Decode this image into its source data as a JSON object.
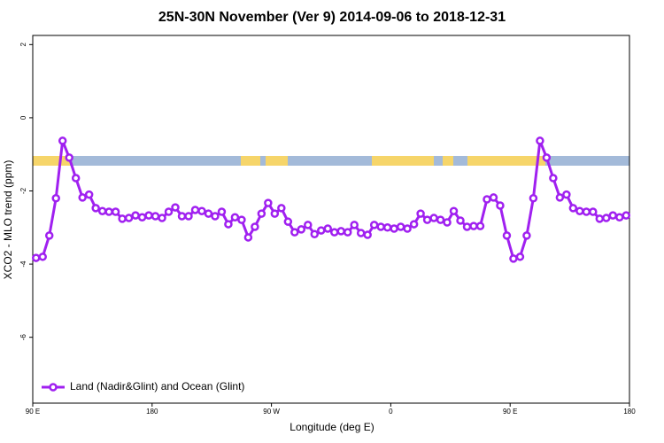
{
  "chart_data": {
    "type": "line",
    "title": "25N-30N November (Ver 9)   2014-09-06 to 2018-12-31",
    "x_label": "Longitude (deg E)",
    "y_label": "XCO2 - MLO trend (ppm)",
    "xlim": [
      90,
      540
    ],
    "xticks": [
      {
        "value": 90,
        "label": "90 E"
      },
      180,
      {
        "value": 270,
        "label": "90 W"
      },
      {
        "value": 360,
        "label": "0"
      },
      {
        "value": 450,
        "label": "90 E"
      },
      {
        "value": 540,
        "label": "180"
      }
    ],
    "ylim": [
      -7.8,
      2.25
    ],
    "yticks": [
      -6,
      -4,
      -2,
      0,
      2
    ],
    "legend_position": "bottom-left",
    "x": [
      92.5,
      97.5,
      102.5,
      107.5,
      112.5,
      117.5,
      122.5,
      127.5,
      132.5,
      137.5,
      142.5,
      147.5,
      152.5,
      157.5,
      162.5,
      167.5,
      172.5,
      177.5,
      182.5,
      187.5,
      192.5,
      197.5,
      202.5,
      207.5,
      212.5,
      217.5,
      222.5,
      227.5,
      232.5,
      237.5,
      242.5,
      247.5,
      252.5,
      257.5,
      262.5,
      267.5,
      272.5,
      277.5,
      282.5,
      287.5,
      292.5,
      297.5,
      302.5,
      307.5,
      312.5,
      317.5,
      322.5,
      327.5,
      332.5,
      337.5,
      342.5,
      347.5,
      352.5,
      357.5,
      362.5,
      367.5,
      372.5,
      377.5,
      382.5,
      387.5,
      392.5,
      397.5,
      402.5,
      407.5,
      412.5,
      417.5,
      422.5,
      427.5,
      432.5,
      437.5,
      442.5,
      447.5,
      452.5,
      457.5,
      462.5,
      467.5,
      472.5,
      477.5,
      482.5,
      487.5,
      492.5,
      497.5,
      502.5,
      507.5,
      512.5,
      517.5,
      522.5,
      527.5,
      532.5,
      537.5
    ],
    "series": [
      {
        "name": "Land (Nadir&Glint) and Ocean (Glint)",
        "color": "#a020f0",
        "values": [
          -3.83,
          -3.8,
          -3.22,
          -2.2,
          -0.63,
          -1.09,
          -1.65,
          -2.18,
          -2.1,
          -2.47,
          -2.55,
          -2.57,
          -2.57,
          -2.76,
          -2.74,
          -2.67,
          -2.72,
          -2.67,
          -2.69,
          -2.74,
          -2.57,
          -2.45,
          -2.69,
          -2.69,
          -2.52,
          -2.55,
          -2.62,
          -2.69,
          -2.57,
          -2.91,
          -2.72,
          -2.79,
          -3.27,
          -2.98,
          -2.62,
          -2.33,
          -2.62,
          -2.47,
          -2.84,
          -3.13,
          -3.05,
          -2.93,
          -3.18,
          -3.08,
          -3.03,
          -3.13,
          -3.1,
          -3.13,
          -2.93,
          -3.15,
          -3.2,
          -2.93,
          -2.98,
          -3.0,
          -3.03,
          -2.98,
          -3.03,
          -2.91,
          -2.62,
          -2.79,
          -2.74,
          -2.79,
          -2.86,
          -2.55,
          -2.81,
          -2.98,
          -2.96,
          -2.96,
          -2.23,
          -2.18,
          -2.4,
          -3.22,
          -3.85,
          -3.8,
          -3.22,
          -2.2,
          -0.63,
          -1.09,
          -1.65,
          -2.18,
          -2.1,
          -2.47,
          -2.55,
          -2.57,
          -2.57,
          -2.76,
          -2.74,
          -2.67,
          -2.72,
          -2.67
        ]
      }
    ]
  }
}
